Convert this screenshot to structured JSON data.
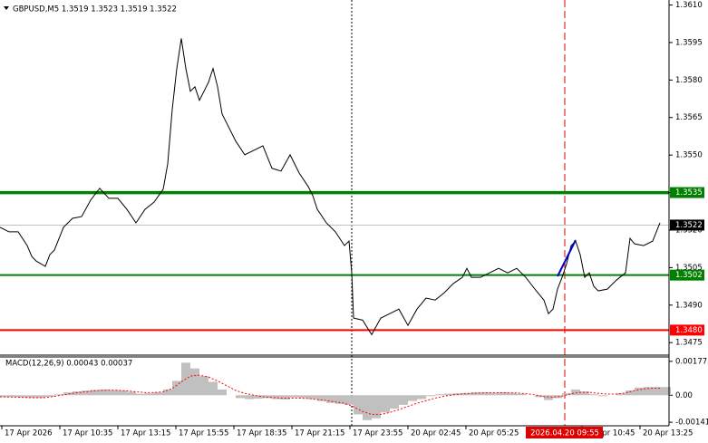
{
  "chart_data": [
    {
      "type": "line",
      "title": "GBPUSD,M5  1.3519 1.3523 1.3519 1.3522",
      "color": "#000000",
      "x": [
        0,
        5,
        10,
        15,
        17.5,
        20,
        25,
        27.5,
        30,
        35,
        40,
        45,
        50,
        55,
        60,
        65,
        70,
        75,
        80,
        85,
        90,
        92.5,
        95,
        97.5,
        100,
        102.5,
        105,
        107.5,
        110,
        115,
        117.5,
        120,
        122.5,
        125,
        130,
        135,
        140,
        145,
        150,
        155,
        160,
        165,
        170,
        172.5,
        175,
        180,
        185,
        190,
        192.5,
        194,
        195,
        200,
        205,
        210,
        215,
        220,
        225,
        230,
        235,
        240,
        245,
        250,
        255,
        257.5,
        260,
        265,
        270,
        275,
        280,
        285,
        290,
        295,
        300,
        302.5,
        305,
        307.5,
        310,
        312.5,
        315,
        317.5,
        320,
        322.5,
        325,
        327.5,
        330,
        335,
        340,
        345,
        347.5,
        350,
        355,
        360,
        364
      ],
      "values": [
        1.35211,
        1.35193,
        1.35193,
        1.35138,
        1.35095,
        1.35076,
        1.35055,
        1.35102,
        1.3512,
        1.35211,
        1.35247,
        1.35254,
        1.3532,
        1.35367,
        1.35327,
        1.35327,
        1.35283,
        1.35229,
        1.35283,
        1.35312,
        1.35363,
        1.35465,
        1.35683,
        1.35846,
        1.35966,
        1.35846,
        1.35755,
        1.35773,
        1.35719,
        1.35791,
        1.35846,
        1.35773,
        1.35664,
        1.35628,
        1.35556,
        1.35501,
        1.35519,
        1.35537,
        1.35447,
        1.35436,
        1.35501,
        1.35428,
        1.35374,
        1.35338,
        1.35283,
        1.35229,
        1.35193,
        1.35138,
        1.35156,
        1.35029,
        1.34848,
        1.3484,
        1.34782,
        1.34848,
        1.34866,
        1.34884,
        1.34819,
        1.34884,
        1.34928,
        1.3492,
        1.34949,
        1.34986,
        1.35011,
        1.35047,
        1.35011,
        1.35011,
        1.35029,
        1.35047,
        1.35029,
        1.35047,
        1.35011,
        1.34964,
        1.3492,
        1.34866,
        1.34884,
        1.34964,
        1.35011,
        1.35065,
        1.35138,
        1.35156,
        1.35102,
        1.35011,
        1.35029,
        1.34975,
        1.34957,
        1.34964,
        1.35,
        1.35029,
        1.35167,
        1.35145,
        1.35138,
        1.35156,
        1.35229
      ],
      "xlim": [
        0,
        369
      ],
      "ylim": [
        1.347,
        1.3612
      ],
      "yticks": [
        1.3475,
        {
          "value": 1.349,
          "label": "1.3490"
        },
        1.3505,
        {
          "value": 1.352,
          "label": "1.3520"
        },
        1.3535,
        {
          "value": 1.355,
          "label": "1.3550"
        },
        1.3565,
        {
          "value": 1.358,
          "label": "1.3580"
        },
        1.3595,
        {
          "value": 1.361,
          "label": "1.3610"
        }
      ],
      "xticks": [
        {
          "value": 1,
          "label": "17 Apr 2026"
        },
        {
          "value": 33,
          "label": "17 Apr 10:35"
        },
        {
          "value": 65,
          "label": "17 Apr 13:15"
        },
        {
          "value": 97,
          "label": "17 Apr 15:55"
        },
        {
          "value": 129,
          "label": "17 Apr 18:35"
        },
        {
          "value": 161,
          "label": "17 Apr 21:15"
        },
        {
          "value": 193,
          "label": "17 Apr 23:55"
        },
        {
          "value": 225,
          "label": "20 Apr 02:45"
        },
        {
          "value": 257,
          "label": "20 Apr 05:25"
        },
        {
          "value": 321,
          "label": "20 Apr 10:45"
        },
        {
          "value": 353,
          "label": "20 Apr 13:25"
        }
      ],
      "levels": [
        {
          "value": 1.3535,
          "color": "#008000"
        },
        {
          "value": 1.3502,
          "color": "#008000"
        },
        {
          "value": 1.348,
          "label": "1.3480",
          "color": "#ff0000"
        }
      ],
      "last": {
        "value": 1.3522,
        "color": "#000000"
      },
      "vlines": [
        {
          "x": 194,
          "color": "#000000",
          "style": "dotted"
        },
        {
          "x": 311.5,
          "color": "#e00000",
          "style": "dashed",
          "label": "2026.04.20 09:55"
        }
      ]
    },
    {
      "type": "macd",
      "title": "MACD(12,26,9) 0.00043 0.00037",
      "x": [
        0,
        5,
        10,
        15,
        20,
        25,
        30,
        35,
        40,
        45,
        50,
        55,
        60,
        65,
        70,
        75,
        80,
        85,
        90,
        95,
        100,
        105,
        110,
        115,
        120,
        125,
        130,
        135,
        140,
        145,
        150,
        155,
        160,
        165,
        170,
        175,
        180,
        185,
        190,
        195,
        200,
        205,
        210,
        215,
        220,
        225,
        230,
        235,
        240,
        245,
        250,
        255,
        260,
        265,
        270,
        275,
        280,
        285,
        290,
        295,
        300,
        305,
        310,
        315,
        320,
        325,
        330,
        335,
        340,
        345,
        350,
        355,
        360,
        365
      ],
      "histogram": {
        "color": "#c0c0c0",
        "values": [
          -0.0001,
          -0.0001,
          -0.00012,
          -0.00014,
          -0.00015,
          -8e-05,
          5e-05,
          0.00015,
          0.0002,
          0.00024,
          0.00028,
          0.0003,
          0.00027,
          0.00025,
          0.00018,
          8e-05,
          0.0001,
          0.00015,
          0.0003,
          0.00075,
          0.0017,
          0.0014,
          0.001,
          0.0007,
          0.0003,
          0,
          -0.00015,
          -0.0002,
          -0.00018,
          -0.00015,
          -0.0002,
          -0.00022,
          -0.00012,
          -0.00015,
          -0.0002,
          -0.0003,
          -0.0004,
          -0.00045,
          -0.0005,
          -0.001,
          -0.0013,
          -0.0012,
          -0.0009,
          -0.0007,
          -0.0005,
          -0.0003,
          -0.0002,
          -5e-05,
          5e-05,
          8e-05,
          0.0001,
          0.00012,
          0.00015,
          0.00015,
          0.00012,
          0.00015,
          0.00012,
          8e-05,
          0,
          -0.0001,
          -0.00025,
          -0.00015,
          0.0001,
          0.0003,
          0.0002,
          5e-05,
          -5e-05,
          0,
          0.0001,
          0.00025,
          0.0004,
          0.00043,
          0.00043,
          0.00043
        ]
      },
      "signal": {
        "color": "#ff0000",
        "values": [
          -8e-05,
          -9e-05,
          -0.0001,
          -0.00012,
          -0.00013,
          -0.00012,
          -6e-05,
          2e-05,
          0.0001,
          0.00016,
          0.00021,
          0.00025,
          0.00027,
          0.00026,
          0.00023,
          0.00018,
          0.00014,
          0.00014,
          0.00018,
          0.00035,
          0.0007,
          0.001,
          0.00105,
          0.00095,
          0.00075,
          0.0005,
          0.00025,
          0.0001,
          0,
          -8e-05,
          -0.00012,
          -0.00015,
          -0.00015,
          -0.00015,
          -0.00017,
          -0.00022,
          -0.00028,
          -0.00035,
          -0.00042,
          -0.0006,
          -0.00085,
          -0.001,
          -0.001,
          -0.0009,
          -0.00075,
          -0.00058,
          -0.00042,
          -0.00028,
          -0.00015,
          -5e-05,
          2e-05,
          7e-05,
          0.0001,
          0.00012,
          0.00013,
          0.00013,
          0.00013,
          0.00012,
          8e-05,
          2e-05,
          -7e-05,
          -0.0001,
          -5e-05,
          8e-05,
          0.00015,
          0.00015,
          0.0001,
          6e-05,
          6e-05,
          0.00012,
          0.00025,
          0.00033,
          0.00037,
          0.00037
        ]
      },
      "xlim": [
        0,
        369
      ],
      "ylim": [
        -0.0015,
        0.002
      ],
      "yticks": [
        -0.00141,
        {
          "value": 0,
          "label": "0.00"
        },
        0.00177
      ]
    }
  ]
}
